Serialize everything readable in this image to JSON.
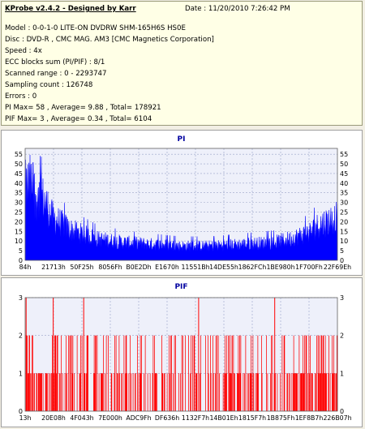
{
  "info": {
    "title": "KProbe v2.4.2 - Designed by Karr",
    "date": "Date : 11/20/2010 7:26:42 PM",
    "lines": [
      "Model : 0-0-1-0 LITE-ON DVDRW SHM-165H6S HS0E",
      "Disc : DVD-R , CMC MAG. AM3 [CMC Magnetics Corporation]",
      "Speed : 4x",
      "ECC blocks sum (PI/PIF) : 8/1",
      "Scanned range : 0 - 2293747",
      "Sampling count : 126748",
      "Errors : 0",
      "PI Max= 58 , Average= 9.88 , Total= 178921",
      "PIF Max= 3 , Average= 0.34 , Total= 6104"
    ]
  },
  "chart_data": [
    {
      "type": "area",
      "title": "PI",
      "color": "#0000ff",
      "ylim": [
        0,
        58
      ],
      "yticks": [
        0,
        5,
        10,
        15,
        20,
        25,
        30,
        35,
        40,
        45,
        50,
        55
      ],
      "xtick_labels": [
        "84h",
        "21713h",
        "50F25h",
        "8056Fh",
        "B0E2Dh",
        "E1670h",
        "11551Bh",
        "14DE55h",
        "1862FCh",
        "1BE980h",
        "1F700Fh",
        "22F69Eh"
      ],
      "x_range": [
        132,
        2293747
      ],
      "grid": true,
      "profile": {
        "x": [
          132,
          40000,
          80000,
          137000,
          200000,
          330000,
          526000,
          726000,
          925000,
          1134000,
          1368000,
          1597000,
          1828000,
          1950000,
          2030000,
          2100000,
          2160000,
          2230000,
          2293747
        ],
        "y": [
          40,
          43,
          36,
          34,
          24,
          17,
          12,
          10,
          9,
          8,
          8,
          9,
          10,
          12,
          14,
          16,
          20,
          22,
          24
        ]
      }
    },
    {
      "type": "bar",
      "title": "PIF",
      "color": "#ff0000",
      "ylim": [
        0,
        3
      ],
      "yticks": [
        0,
        1,
        2,
        3
      ],
      "xtick_labels": [
        "13h",
        "20E08h",
        "4F043h",
        "7E000h",
        "ADC9Fh",
        "DF636h",
        "1132F7h",
        "14B01Eh",
        "1815F7h",
        "1B875Fh",
        "1EF8B7h",
        "226B07h"
      ],
      "x_range": [
        19,
        2255623
      ],
      "grid": true,
      "spikes_3": [
        4000,
        200000,
        420000,
        1250000,
        1800000
      ]
    }
  ]
}
